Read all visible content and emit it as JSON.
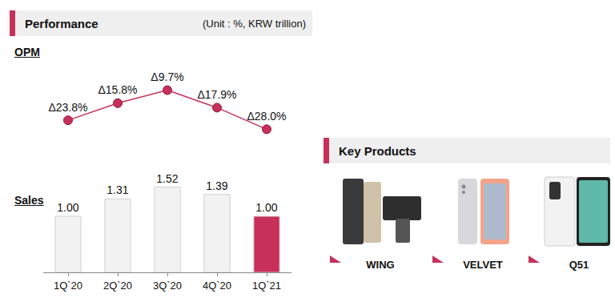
{
  "header": {
    "title": "Performance",
    "unit": "(Unit : %, KRW trillion)"
  },
  "chart_data": [
    {
      "type": "line",
      "title": "OPM",
      "categories": [
        "1Q`20",
        "2Q`20",
        "3Q`20",
        "4Q`20",
        "1Q`21"
      ],
      "values": [
        -23.8,
        -15.8,
        -9.7,
        -17.9,
        -28.0
      ],
      "value_labels": [
        "Δ23.8%",
        "Δ15.8%",
        "Δ9.7%",
        "Δ17.9%",
        "Δ28.0%"
      ],
      "color": "#c7305a",
      "marker": "circle",
      "ylim": [
        -35,
        -5
      ],
      "tick_labels": false,
      "data_labels": true,
      "grid": false
    },
    {
      "type": "bar",
      "title": "Sales",
      "categories": [
        "1Q`20",
        "2Q`20",
        "3Q`20",
        "4Q`20",
        "1Q`21"
      ],
      "values": [
        1.0,
        1.31,
        1.52,
        1.39,
        1.0
      ],
      "value_labels": [
        "1.00",
        "1.31",
        "1.52",
        "1.39",
        "1.00"
      ],
      "colors": [
        "#f2f2f2",
        "#f2f2f2",
        "#f2f2f2",
        "#f2f2f2",
        "#c7305a"
      ],
      "ylim": [
        0,
        2
      ],
      "tick_labels": "x",
      "data_labels": true,
      "grid": false
    }
  ],
  "key_products": {
    "title": "Key Products",
    "items": [
      "WING",
      "VELVET",
      "Q51"
    ]
  }
}
